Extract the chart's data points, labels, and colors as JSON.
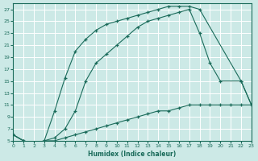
{
  "xlabel": "Humidex (Indice chaleur)",
  "bg_color": "#cce9e6",
  "grid_color": "#b8d8d5",
  "line_color": "#1a6b5a",
  "curve_top_x": [
    0,
    1,
    2,
    3,
    4,
    5,
    6,
    7,
    8,
    9,
    10,
    11,
    12,
    13,
    14,
    15,
    16,
    17,
    18,
    22,
    23
  ],
  "curve_top_y": [
    6,
    5,
    4.5,
    5,
    10,
    15.5,
    20,
    22,
    23.5,
    24.5,
    25,
    25.5,
    26,
    26.5,
    27,
    27.5,
    27.5,
    27.5,
    27,
    15,
    11
  ],
  "curve_mid_x": [
    0,
    1,
    2,
    3,
    4,
    5,
    6,
    7,
    8,
    9,
    10,
    11,
    12,
    13,
    14,
    15,
    16,
    17,
    18,
    19,
    20,
    22,
    23
  ],
  "curve_mid_y": [
    6,
    5,
    4.5,
    5,
    5.5,
    7,
    10,
    15,
    18,
    19.5,
    21,
    22.5,
    24,
    25,
    25.5,
    26,
    26.5,
    27,
    23,
    18,
    15,
    15,
    11
  ],
  "curve_bot_x": [
    0,
    1,
    2,
    3,
    4,
    5,
    6,
    7,
    8,
    9,
    10,
    11,
    12,
    13,
    14,
    15,
    16,
    17,
    18,
    19,
    20,
    21,
    22,
    23
  ],
  "curve_bot_y": [
    6,
    5,
    4.5,
    5,
    5,
    5.5,
    6,
    6.5,
    7,
    7.5,
    8,
    8.5,
    9,
    9.5,
    10,
    10,
    10.5,
    11,
    11,
    11,
    11,
    11,
    11,
    11
  ],
  "yticks": [
    5,
    7,
    9,
    11,
    13,
    15,
    17,
    19,
    21,
    23,
    25,
    27
  ],
  "xticks": [
    0,
    1,
    2,
    3,
    4,
    5,
    6,
    7,
    8,
    9,
    10,
    11,
    12,
    13,
    14,
    15,
    16,
    17,
    18,
    19,
    20,
    21,
    22,
    23
  ],
  "xlim": [
    0,
    23
  ],
  "ylim": [
    5,
    28
  ]
}
